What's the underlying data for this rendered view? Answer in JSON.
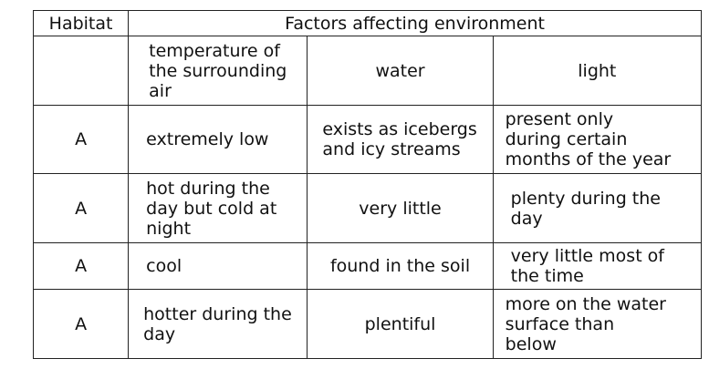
{
  "table": {
    "header_habitat": "Habitat",
    "header_factors": "Factors affecting environment",
    "subheaders": {
      "temperature": [
        "temperature of",
        "the surrounding",
        "air"
      ],
      "water": "water",
      "light": "light"
    },
    "rows": [
      {
        "habitat": "A",
        "temperature": [
          "extremely low"
        ],
        "water": [
          "exists as icebergs",
          "and icy streams"
        ],
        "light": [
          "present only",
          "during certain",
          "months of the year"
        ]
      },
      {
        "habitat": "A",
        "temperature": [
          "hot during the",
          "day but cold at",
          "night"
        ],
        "water": [
          "very little"
        ],
        "light": [
          "plenty during the",
          "day"
        ]
      },
      {
        "habitat": "A",
        "temperature": [
          "cool"
        ],
        "water": [
          "found in the soil"
        ],
        "light": [
          "very little most of",
          "the time"
        ]
      },
      {
        "habitat": "A",
        "temperature": [
          "hotter during the",
          "day"
        ],
        "water": [
          "plentiful"
        ],
        "light": [
          "more on the water",
          "surface than",
          "below"
        ]
      }
    ]
  }
}
